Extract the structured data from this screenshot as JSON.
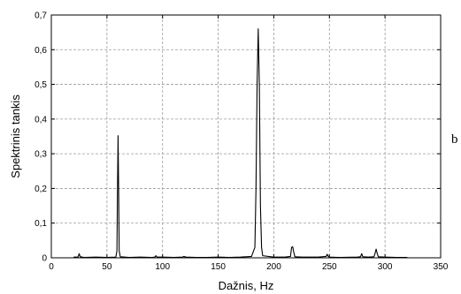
{
  "chart_data": {
    "type": "line",
    "xlabel": "Dažnis, Hz",
    "ylabel": "Spektrinis tankis",
    "panel_label": "b",
    "xlim": [
      0,
      350
    ],
    "ylim": [
      0,
      0.7
    ],
    "x_ticks": [
      0,
      50,
      100,
      150,
      200,
      250,
      300,
      350
    ],
    "x_tick_labels": [
      "0",
      "50",
      "100",
      "150",
      "200",
      "250",
      "300",
      "350"
    ],
    "y_ticks": [
      0,
      0.1,
      0.2,
      0.3,
      0.4,
      0.5,
      0.6,
      0.7
    ],
    "y_tick_labels": [
      "0",
      "0,1",
      "0,2",
      "0,3",
      "0,4",
      "0,5",
      "0,6",
      "0,7"
    ],
    "grid": true,
    "series": [
      {
        "color": "#000000",
        "x": [
          20,
          24,
          25,
          26,
          30,
          40,
          50,
          58,
          59,
          59.5,
          60,
          60.5,
          61,
          62,
          70,
          80,
          90,
          93,
          94,
          95,
          100,
          110,
          118,
          119,
          120,
          121,
          130,
          140,
          150,
          160,
          170,
          180,
          183,
          184,
          185,
          186,
          187,
          188,
          189,
          190,
          200,
          210,
          215,
          216,
          217,
          218,
          219,
          225,
          240,
          247,
          248,
          249,
          250,
          260,
          275,
          278,
          279,
          280,
          285,
          290,
          291,
          292,
          293,
          294,
          300,
          310,
          320
        ],
        "y": [
          0.002,
          0.002,
          0.012,
          0.003,
          0.001,
          0.002,
          0.001,
          0.002,
          0.02,
          0.2,
          0.352,
          0.2,
          0.02,
          0.003,
          0.001,
          0.002,
          0.001,
          0.002,
          0.006,
          0.002,
          0.002,
          0.001,
          0.002,
          0.004,
          0.003,
          0.002,
          0.001,
          0.001,
          0.002,
          0.001,
          0.002,
          0.004,
          0.03,
          0.2,
          0.5,
          0.66,
          0.5,
          0.15,
          0.03,
          0.006,
          0.002,
          0.002,
          0.004,
          0.03,
          0.032,
          0.015,
          0.003,
          0.002,
          0.002,
          0.004,
          0.01,
          0.004,
          0.002,
          0.001,
          0.002,
          0.003,
          0.012,
          0.003,
          0.002,
          0.003,
          0.012,
          0.025,
          0.012,
          0.003,
          0.002,
          0.001,
          0.001
        ]
      }
    ]
  }
}
